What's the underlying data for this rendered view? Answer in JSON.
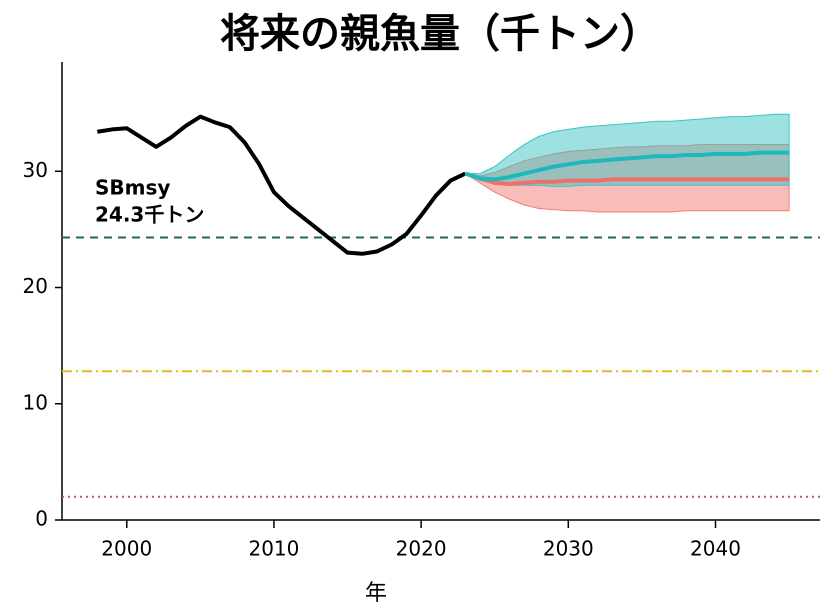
{
  "chart_data": {
    "type": "line",
    "title": "将来の親魚量（千トン）",
    "x_label": "年",
    "xlim": [
      1995.6,
      2047.1
    ],
    "xticks": [
      2000,
      2010,
      2020,
      2030,
      2040
    ],
    "ylim": [
      0,
      39.4
    ],
    "yticks": [
      0,
      10,
      20,
      30
    ],
    "hlines": [
      {
        "value": 24.3,
        "color": "#1e6b45",
        "dash": "8 6"
      },
      {
        "value": 12.8,
        "color": "#e8b820",
        "dash": "10 4 2 4"
      },
      {
        "value": 2.0,
        "color": "#d05050",
        "dash": "2 4"
      }
    ],
    "annotation": [
      "SBmsy",
      "24.3千トン"
    ],
    "bands": [
      {
        "color": "#f47c74",
        "x": [
          2023,
          2024,
          2025,
          2026,
          2027,
          2028,
          2029,
          2030,
          2031,
          2032,
          2033,
          2034,
          2035,
          2036,
          2037,
          2038,
          2039,
          2040,
          2041,
          2042,
          2043,
          2044,
          2045
        ],
        "upper": [
          29.8,
          29.6,
          29.9,
          30.4,
          30.9,
          31.2,
          31.5,
          31.7,
          31.8,
          31.9,
          32.0,
          32.1,
          32.1,
          32.2,
          32.2,
          32.2,
          32.3,
          32.3,
          32.3,
          32.3,
          32.3,
          32.3,
          32.3
        ],
        "lower": [
          29.8,
          29.0,
          28.2,
          27.6,
          27.1,
          26.8,
          26.7,
          26.6,
          26.6,
          26.5,
          26.5,
          26.5,
          26.5,
          26.5,
          26.5,
          26.6,
          26.6,
          26.6,
          26.6,
          26.6,
          26.6,
          26.6,
          26.6
        ]
      },
      {
        "color": "#3cc4c4",
        "x": [
          2023,
          2024,
          2025,
          2026,
          2027,
          2028,
          2029,
          2030,
          2031,
          2032,
          2033,
          2034,
          2035,
          2036,
          2037,
          2038,
          2039,
          2040,
          2041,
          2042,
          2043,
          2044,
          2045
        ],
        "upper": [
          29.8,
          29.8,
          30.4,
          31.4,
          32.3,
          33.0,
          33.4,
          33.6,
          33.8,
          33.9,
          34.0,
          34.1,
          34.2,
          34.3,
          34.3,
          34.4,
          34.5,
          34.6,
          34.7,
          34.7,
          34.8,
          34.9,
          34.9
        ],
        "lower": [
          29.8,
          29.2,
          28.9,
          28.8,
          28.8,
          28.8,
          28.7,
          28.7,
          28.8,
          28.8,
          28.8,
          28.8,
          28.8,
          28.8,
          28.8,
          28.8,
          28.8,
          28.8,
          28.8,
          28.8,
          28.8,
          28.8,
          28.8
        ]
      }
    ],
    "series": [
      {
        "color": "#000000",
        "x": [
          1998,
          1999,
          2000,
          2001,
          2002,
          2003,
          2004,
          2005,
          2006,
          2007,
          2008,
          2009,
          2010,
          2011,
          2012,
          2013,
          2014,
          2015,
          2016,
          2017,
          2018,
          2019,
          2020,
          2021,
          2022,
          2023
        ],
        "values": [
          33.4,
          33.6,
          33.7,
          32.9,
          32.1,
          32.9,
          33.9,
          34.7,
          34.2,
          33.8,
          32.5,
          30.6,
          28.2,
          27.0,
          26.0,
          25.0,
          24.0,
          23.0,
          22.9,
          23.1,
          23.7,
          24.6,
          26.2,
          27.9,
          29.2,
          29.8
        ]
      },
      {
        "color": "#f07068",
        "x": [
          2023,
          2024,
          2025,
          2026,
          2027,
          2028,
          2029,
          2030,
          2031,
          2032,
          2033,
          2034,
          2035,
          2036,
          2037,
          2038,
          2039,
          2040,
          2041,
          2042,
          2043,
          2044,
          2045
        ],
        "values": [
          29.8,
          29.4,
          29.0,
          28.9,
          29.0,
          29.1,
          29.1,
          29.2,
          29.2,
          29.2,
          29.3,
          29.3,
          29.3,
          29.3,
          29.3,
          29.3,
          29.3,
          29.3,
          29.3,
          29.3,
          29.3,
          29.3,
          29.3
        ]
      },
      {
        "color": "#1cb8bc",
        "x": [
          2023,
          2024,
          2025,
          2026,
          2027,
          2028,
          2029,
          2030,
          2031,
          2032,
          2033,
          2034,
          2035,
          2036,
          2037,
          2038,
          2039,
          2040,
          2041,
          2042,
          2043,
          2044,
          2045
        ],
        "values": [
          29.8,
          29.4,
          29.3,
          29.5,
          29.8,
          30.1,
          30.4,
          30.6,
          30.8,
          30.9,
          31.0,
          31.1,
          31.2,
          31.3,
          31.3,
          31.4,
          31.4,
          31.5,
          31.5,
          31.5,
          31.6,
          31.6,
          31.6
        ]
      }
    ]
  }
}
